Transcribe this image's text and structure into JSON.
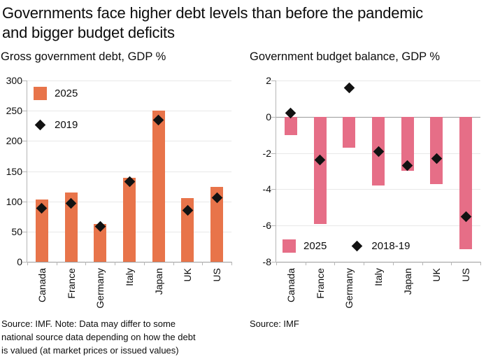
{
  "title": {
    "line1": "Governments face higher debt levels than before the pandemic",
    "line2": "and bigger budget deficits"
  },
  "sources": {
    "left_lines": [
      "Source: IMF. Note: Data may differ to some",
      "national source data depending on how the debt",
      "is valued (at market prices or issued values)"
    ],
    "right": "Source: IMF"
  },
  "colors": {
    "debt_bar": "#e8744a",
    "balance_bar": "#e66e87",
    "marker": "#121212",
    "grid": "#e8e8e8",
    "axis": "#b5b5b5",
    "zero_line": "#9b9b9b"
  },
  "chart_data": [
    {
      "type": "bar",
      "title": "Gross government debt, GDP %",
      "categories": [
        "Canada",
        "France",
        "Germany",
        "Italy",
        "Japan",
        "UK",
        "US"
      ],
      "series": [
        {
          "name": "2025",
          "marker": "bar",
          "color": "#e8744a",
          "values": [
            103,
            115,
            62,
            139,
            250,
            105,
            124
          ]
        },
        {
          "name": "2019",
          "marker": "diamond",
          "color": "#121212",
          "values": [
            89,
            97,
            58,
            133,
            235,
            85,
            106
          ]
        }
      ],
      "ylim": [
        0,
        300
      ],
      "yticks": [
        0,
        50,
        100,
        150,
        200,
        250,
        300
      ],
      "bar_base": 0,
      "grid": true,
      "legend_position": "top-left"
    },
    {
      "type": "bar",
      "title": "Government budget balance, GDP %",
      "categories": [
        "Canada",
        "France",
        "Germany",
        "Italy",
        "Japan",
        "UK",
        "US"
      ],
      "series": [
        {
          "name": "2025",
          "marker": "bar",
          "color": "#e66e87",
          "values": [
            -1.0,
            -5.9,
            -1.7,
            -3.8,
            -3.0,
            -3.7,
            -7.3
          ]
        },
        {
          "name": "2018-19",
          "marker": "diamond",
          "color": "#121212",
          "values": [
            0.2,
            -2.4,
            1.6,
            -1.9,
            -2.7,
            -2.3,
            -5.5
          ]
        }
      ],
      "ylim": [
        -8,
        2
      ],
      "yticks": [
        -8,
        -6,
        -4,
        -2,
        0,
        2
      ],
      "bar_base": 0,
      "zero_line": 0,
      "grid": true,
      "legend_position": "bottom-inside"
    }
  ]
}
